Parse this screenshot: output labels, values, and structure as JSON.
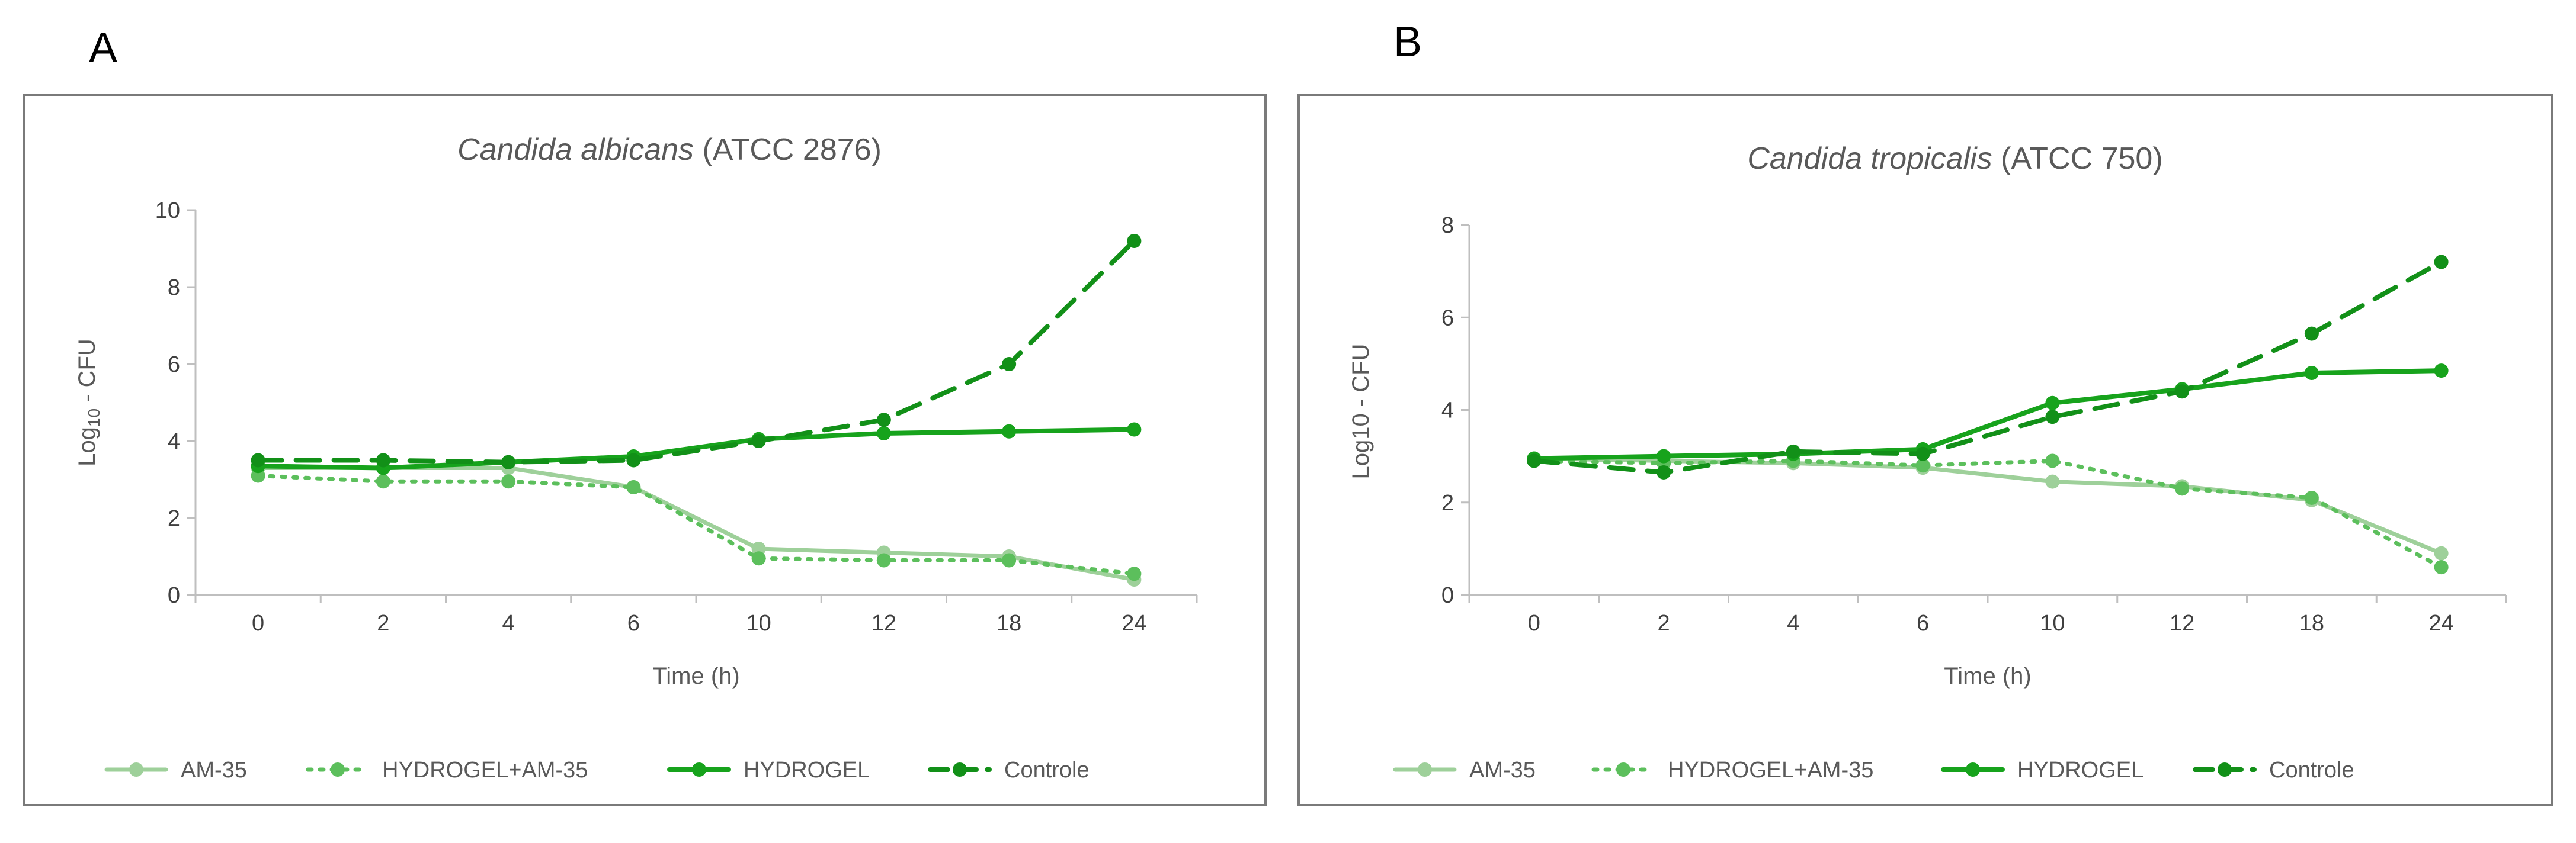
{
  "panels": [
    {
      "letter": "A"
    },
    {
      "letter": "B"
    }
  ],
  "chart_data": [
    {
      "type": "line",
      "title_italic": "Candida albicans",
      "title_rest": " (ATCC 2876)",
      "xlabel": "Time (h)",
      "ylabel_base": "Log",
      "ylabel_sub": "10",
      "ylabel_rest": " - CFU",
      "categories": [
        "0",
        "2",
        "4",
        "6",
        "10",
        "12",
        "18",
        "24"
      ],
      "ylim": [
        0,
        10
      ],
      "yticks": [
        0,
        2,
        4,
        6,
        8,
        10
      ],
      "colors": {
        "light": "#9ed09a",
        "mid": "#5cbf5c",
        "dark": "#17a31c",
        "darkest": "#129018"
      },
      "series": [
        {
          "name": "AM-35",
          "style": "solid-light",
          "values": [
            3.3,
            3.3,
            3.3,
            2.8,
            1.2,
            1.1,
            1.0,
            0.4
          ]
        },
        {
          "name": "HYDROGEL+AM-35",
          "style": "dotted",
          "values": [
            3.1,
            2.95,
            2.95,
            2.8,
            0.95,
            0.9,
            0.9,
            0.55
          ]
        },
        {
          "name": "HYDROGEL",
          "style": "solid-dark",
          "values": [
            3.35,
            3.3,
            3.45,
            3.6,
            4.05,
            4.2,
            4.25,
            4.3
          ]
        },
        {
          "name": "Controle",
          "style": "dashed",
          "values": [
            3.5,
            3.5,
            3.45,
            3.5,
            4.0,
            4.55,
            6.0,
            9.2
          ]
        }
      ]
    },
    {
      "type": "line",
      "title_italic": "Candida tropicalis",
      "title_rest": " (ATCC 750)",
      "xlabel": "Time (h)",
      "ylabel_base": "Log10 - CFU",
      "ylabel_sub": "",
      "ylabel_rest": "",
      "categories": [
        "0",
        "2",
        "4",
        "6",
        "10",
        "12",
        "18",
        "24"
      ],
      "ylim": [
        0,
        8
      ],
      "yticks": [
        0,
        2,
        4,
        6,
        8
      ],
      "colors": {
        "light": "#9ed09a",
        "mid": "#5cbf5c",
        "dark": "#17a31c",
        "darkest": "#129018"
      },
      "series": [
        {
          "name": "AM-35",
          "style": "solid-light",
          "values": [
            2.95,
            2.9,
            2.85,
            2.75,
            2.45,
            2.35,
            2.05,
            0.9
          ]
        },
        {
          "name": "HYDROGEL+AM-35",
          "style": "dotted",
          "values": [
            2.9,
            2.85,
            2.9,
            2.8,
            2.9,
            2.3,
            2.1,
            0.6
          ]
        },
        {
          "name": "HYDROGEL",
          "style": "solid-dark",
          "values": [
            2.95,
            3.0,
            3.05,
            3.15,
            4.15,
            4.45,
            4.8,
            4.85
          ]
        },
        {
          "name": "Controle",
          "style": "dashed",
          "values": [
            2.9,
            2.65,
            3.1,
            3.05,
            3.85,
            4.4,
            5.65,
            7.2
          ]
        }
      ]
    }
  ]
}
